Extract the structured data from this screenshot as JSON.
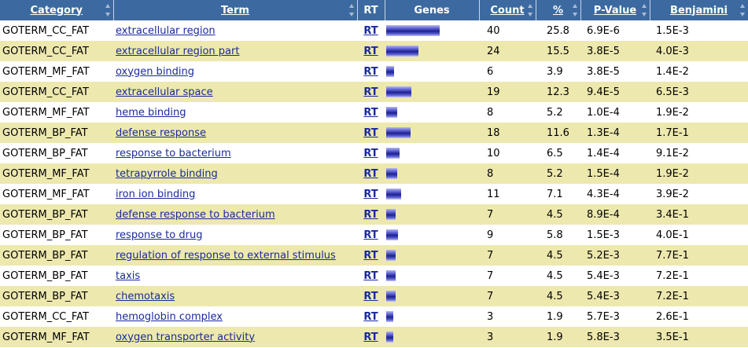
{
  "header": {
    "category": "Category",
    "term": "Term",
    "rt": "RT",
    "genes": "Genes",
    "count": "Count",
    "percent": "%",
    "pvalue": "P-Value",
    "benjamini": "Benjamini"
  },
  "bar_color": "#1e2290",
  "row_alt_color": "#ede8ae",
  "header_color": "#3c6aa0",
  "rows": [
    {
      "category": "GOTERM_CC_FAT",
      "term": "extracellular region",
      "rt": "RT",
      "count": "40",
      "percent": "25.8",
      "pvalue": "6.9E-6",
      "benjamini": "1.5E-3"
    },
    {
      "category": "GOTERM_CC_FAT",
      "term": "extracellular region part",
      "rt": "RT",
      "count": "24",
      "percent": "15.5",
      "pvalue": "3.8E-5",
      "benjamini": "4.0E-3"
    },
    {
      "category": "GOTERM_MF_FAT",
      "term": "oxygen binding",
      "rt": "RT",
      "count": "6",
      "percent": "3.9",
      "pvalue": "3.8E-5",
      "benjamini": "1.4E-2"
    },
    {
      "category": "GOTERM_CC_FAT",
      "term": "extracellular space",
      "rt": "RT",
      "count": "19",
      "percent": "12.3",
      "pvalue": "9.4E-5",
      "benjamini": "6.5E-3"
    },
    {
      "category": "GOTERM_MF_FAT",
      "term": "heme binding",
      "rt": "RT",
      "count": "8",
      "percent": "5.2",
      "pvalue": "1.0E-4",
      "benjamini": "1.9E-2"
    },
    {
      "category": "GOTERM_BP_FAT",
      "term": "defense response",
      "rt": "RT",
      "count": "18",
      "percent": "11.6",
      "pvalue": "1.3E-4",
      "benjamini": "1.7E-1"
    },
    {
      "category": "GOTERM_BP_FAT",
      "term": "response to bacterium",
      "rt": "RT",
      "count": "10",
      "percent": "6.5",
      "pvalue": "1.4E-4",
      "benjamini": "9.1E-2"
    },
    {
      "category": "GOTERM_MF_FAT",
      "term": "tetrapyrrole binding",
      "rt": "RT",
      "count": "8",
      "percent": "5.2",
      "pvalue": "1.5E-4",
      "benjamini": "1.9E-2"
    },
    {
      "category": "GOTERM_MF_FAT",
      "term": "iron ion binding",
      "rt": "RT",
      "count": "11",
      "percent": "7.1",
      "pvalue": "4.3E-4",
      "benjamini": "3.9E-2"
    },
    {
      "category": "GOTERM_BP_FAT",
      "term": "defense response to bacterium",
      "rt": "RT",
      "count": "7",
      "percent": "4.5",
      "pvalue": "8.9E-4",
      "benjamini": "3.4E-1"
    },
    {
      "category": "GOTERM_BP_FAT",
      "term": "response to drug",
      "rt": "RT",
      "count": "9",
      "percent": "5.8",
      "pvalue": "1.5E-3",
      "benjamini": "4.0E-1"
    },
    {
      "category": "GOTERM_BP_FAT",
      "term": "regulation of response to external stimulus",
      "rt": "RT",
      "count": "7",
      "percent": "4.5",
      "pvalue": "5.2E-3",
      "benjamini": "7.7E-1"
    },
    {
      "category": "GOTERM_BP_FAT",
      "term": "taxis",
      "rt": "RT",
      "count": "7",
      "percent": "4.5",
      "pvalue": "5.4E-3",
      "benjamini": "7.2E-1"
    },
    {
      "category": "GOTERM_BP_FAT",
      "term": "chemotaxis",
      "rt": "RT",
      "count": "7",
      "percent": "4.5",
      "pvalue": "5.4E-3",
      "benjamini": "7.2E-1"
    },
    {
      "category": "GOTERM_CC_FAT",
      "term": "hemoglobin complex",
      "rt": "RT",
      "count": "3",
      "percent": "1.9",
      "pvalue": "5.7E-3",
      "benjamini": "2.6E-1"
    },
    {
      "category": "GOTERM_MF_FAT",
      "term": "oxygen transporter activity",
      "rt": "RT",
      "count": "3",
      "percent": "1.9",
      "pvalue": "5.8E-3",
      "benjamini": "3.5E-1"
    }
  ]
}
